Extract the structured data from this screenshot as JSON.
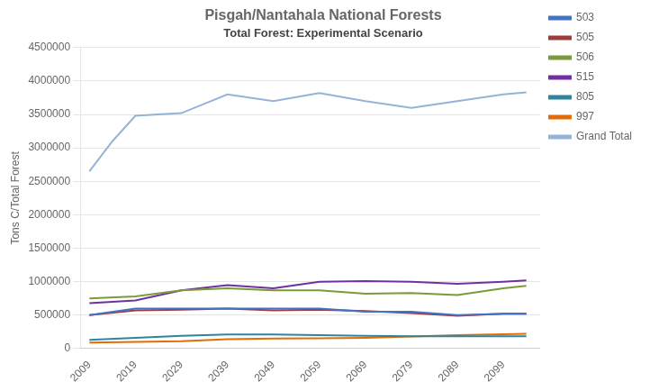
{
  "chart_data": {
    "type": "line",
    "title": "Pisgah/Nantahala National Forests",
    "subtitle": "Total Forest: Experimental Scenario",
    "ylabel": "Tons C/Total Forest",
    "x": [
      2009,
      2019,
      2029,
      2039,
      2049,
      2059,
      2069,
      2079,
      2089,
      2099,
      2104
    ],
    "series": [
      {
        "name": "503",
        "color": "#4472C4",
        "values": [
          500000,
          600000,
          600000,
          600000,
          600000,
          600000,
          550000,
          550000,
          500000,
          520000,
          520000
        ]
      },
      {
        "name": "505",
        "color": "#9E3B3B",
        "values": [
          500000,
          570000,
          580000,
          600000,
          570000,
          580000,
          560000,
          530000,
          490000,
          520000,
          520000
        ]
      },
      {
        "name": "506",
        "color": "#7B9A3C",
        "values": [
          750000,
          780000,
          870000,
          900000,
          870000,
          870000,
          820000,
          830000,
          800000,
          900000,
          940000
        ]
      },
      {
        "name": "515",
        "color": "#7030A0",
        "values": [
          680000,
          720000,
          870000,
          950000,
          900000,
          1000000,
          1010000,
          1000000,
          970000,
          1000000,
          1020000
        ]
      },
      {
        "name": "805",
        "color": "#31849B",
        "values": [
          130000,
          160000,
          190000,
          210000,
          210000,
          200000,
          190000,
          185000,
          185000,
          185000,
          185000
        ]
      },
      {
        "name": "997",
        "color": "#E36C09",
        "values": [
          90000,
          100000,
          110000,
          140000,
          150000,
          155000,
          160000,
          180000,
          200000,
          215000,
          220000
        ]
      },
      {
        "name": "Grand Total",
        "color": "#95B3D7",
        "x": [
          2009,
          2014,
          2019,
          2029,
          2039,
          2049,
          2059,
          2069,
          2079,
          2089,
          2099,
          2104
        ],
        "values": [
          2650000,
          3100000,
          3480000,
          3520000,
          3800000,
          3700000,
          3820000,
          3700000,
          3600000,
          3700000,
          3800000,
          3830000
        ]
      }
    ],
    "xlim": [
      2007,
      2107
    ],
    "xticks": [
      2009,
      2019,
      2029,
      2039,
      2049,
      2059,
      2069,
      2079,
      2089,
      2099
    ],
    "ylim": [
      0,
      4500000
    ],
    "yticks": [
      0,
      500000,
      1000000,
      1500000,
      2000000,
      2500000,
      3000000,
      3500000,
      4000000,
      4500000
    ],
    "grid": "y",
    "legend": "right"
  }
}
